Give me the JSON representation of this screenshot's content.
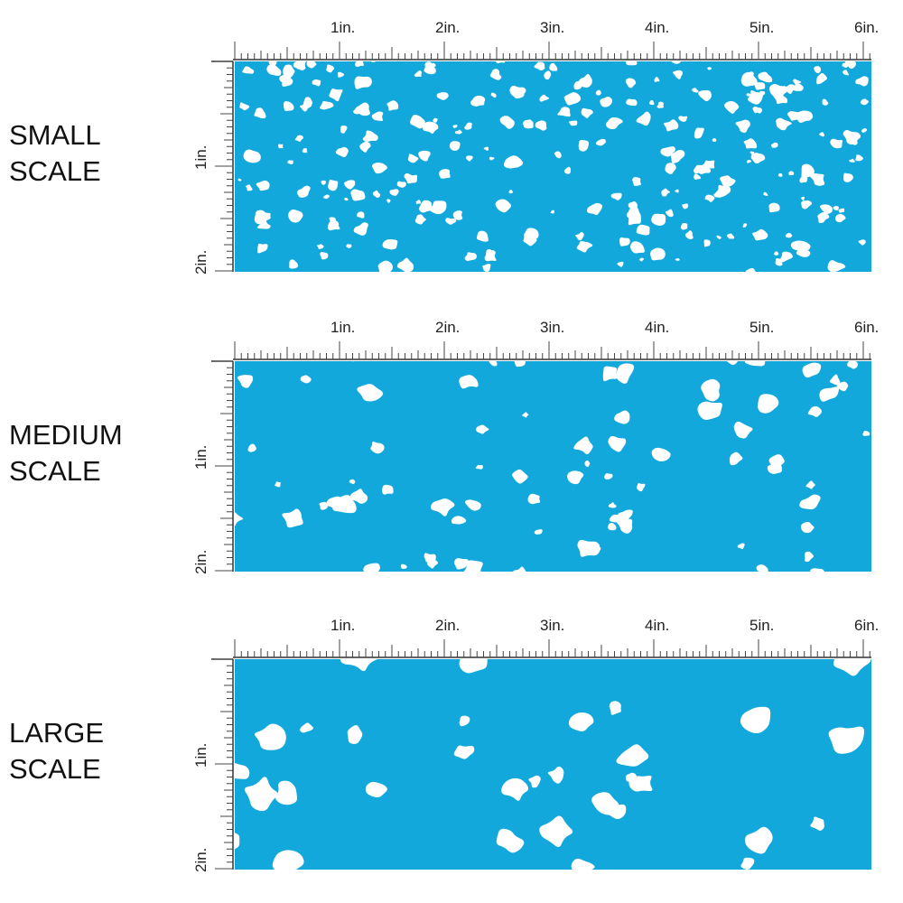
{
  "panels": [
    {
      "label": [
        "SMALL",
        "SCALE"
      ],
      "top_ruler": [
        "1in.",
        "2in.",
        "3in.",
        "4in.",
        "5in.",
        "6in."
      ],
      "side_ruler": [
        "1in.",
        "2in."
      ]
    },
    {
      "label": [
        "MEDIUM",
        "SCALE"
      ],
      "top_ruler": [
        "1in.",
        "2in.",
        "3in.",
        "4in.",
        "5in.",
        "6in."
      ],
      "side_ruler": [
        "1in.",
        "2in."
      ]
    },
    {
      "label": [
        "LARGE",
        "SCALE"
      ],
      "top_ruler": [
        "1in.",
        "2in.",
        "3in.",
        "4in.",
        "5in.",
        "6in."
      ],
      "side_ruler": [
        "1in.",
        "2in."
      ]
    }
  ]
}
